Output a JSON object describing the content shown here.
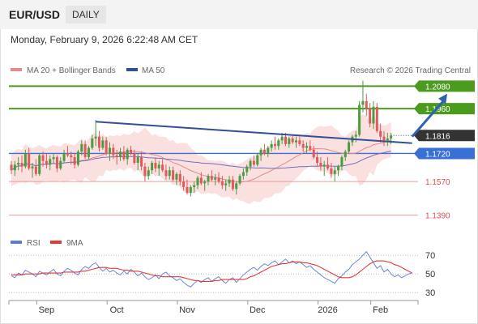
{
  "header": {
    "symbol": "EUR/USD",
    "period": "DAILY",
    "timestamp": "Monday, February 9, 2026 6:22:48 AM CET"
  },
  "legend": {
    "bb_label": "MA 20 + Bollinger Bands",
    "ma50_label": "MA 50",
    "credit": "Research © 2026 Trading Central",
    "rsi_label": "RSI",
    "rsi_ma_label": "9MA"
  },
  "colors": {
    "bullish": "#4b9b3f",
    "bearish": "#e0595c",
    "bollinger_fill": "#fbe0e0",
    "ma20": "#e58a8a",
    "ma50": "#6f6fc2",
    "resistance": "#4b9b1f",
    "support_blue": "#3a6fd6",
    "support_red": "#ef9a9a",
    "trendline": "#304f96",
    "arrow": "#2e63b3",
    "rsi": "#5b7bd6",
    "rsi_ma": "#e53935",
    "last_price_badge": "#333333"
  },
  "chart_data": [
    {
      "type": "candlestick",
      "title": "EUR/USD",
      "ylim": [
        1.1345,
        1.2125
      ],
      "x_ticks": [
        "Sep",
        "Oct",
        "Nov",
        "Dec",
        "2026",
        "Feb"
      ],
      "x_tick_positions": [
        10,
        30,
        50,
        70,
        90,
        105
      ],
      "candles_count": 115,
      "price_levels": [
        {
          "value": 1.208,
          "label": "1.2080",
          "kind": "resistance"
        },
        {
          "value": 1.196,
          "label": "1.1960",
          "kind": "resistance"
        },
        {
          "value": 1.1816,
          "label": "1.1816",
          "kind": "last"
        },
        {
          "value": 1.172,
          "label": "1.1720",
          "kind": "support"
        },
        {
          "value": 1.157,
          "label": "1.1570",
          "kind": "support"
        },
        {
          "value": 1.139,
          "label": "1.1390",
          "kind": "support"
        }
      ],
      "trendline": {
        "from": [
          24,
          1.189
        ],
        "to": [
          114,
          1.1775
        ]
      },
      "forecast_arrow": {
        "from": [
          114,
          1.181
        ],
        "to": [
          124,
          1.204
        ]
      },
      "bollinger_band_halfwidth": 0.0085,
      "ohlc": [
        [
          1.166,
          1.168,
          1.161,
          1.163
        ],
        [
          1.163,
          1.168,
          1.16,
          1.166
        ],
        [
          1.166,
          1.17,
          1.163,
          1.167
        ],
        [
          1.167,
          1.171,
          1.162,
          1.165
        ],
        [
          1.165,
          1.174,
          1.164,
          1.172
        ],
        [
          1.172,
          1.175,
          1.163,
          1.164
        ],
        [
          1.164,
          1.167,
          1.159,
          1.165
        ],
        [
          1.165,
          1.169,
          1.16,
          1.161
        ],
        [
          1.161,
          1.172,
          1.16,
          1.171
        ],
        [
          1.171,
          1.173,
          1.165,
          1.168
        ],
        [
          1.168,
          1.172,
          1.164,
          1.166
        ],
        [
          1.166,
          1.171,
          1.163,
          1.169
        ],
        [
          1.169,
          1.172,
          1.167,
          1.17
        ],
        [
          1.17,
          1.171,
          1.162,
          1.164
        ],
        [
          1.164,
          1.17,
          1.163,
          1.168
        ],
        [
          1.168,
          1.174,
          1.167,
          1.172
        ],
        [
          1.172,
          1.176,
          1.17,
          1.171
        ],
        [
          1.171,
          1.173,
          1.166,
          1.17
        ],
        [
          1.17,
          1.172,
          1.164,
          1.166
        ],
        [
          1.166,
          1.174,
          1.165,
          1.173
        ],
        [
          1.173,
          1.179,
          1.171,
          1.177
        ],
        [
          1.177,
          1.179,
          1.169,
          1.17
        ],
        [
          1.17,
          1.176,
          1.169,
          1.175
        ],
        [
          1.175,
          1.182,
          1.174,
          1.18
        ],
        [
          1.18,
          1.19,
          1.176,
          1.181
        ],
        [
          1.181,
          1.184,
          1.173,
          1.175
        ],
        [
          1.175,
          1.181,
          1.174,
          1.179
        ],
        [
          1.179,
          1.181,
          1.171,
          1.172
        ],
        [
          1.172,
          1.178,
          1.168,
          1.175
        ],
        [
          1.175,
          1.177,
          1.169,
          1.171
        ],
        [
          1.171,
          1.174,
          1.166,
          1.17
        ],
        [
          1.17,
          1.175,
          1.168,
          1.173
        ],
        [
          1.173,
          1.176,
          1.168,
          1.169
        ],
        [
          1.169,
          1.175,
          1.166,
          1.174
        ],
        [
          1.174,
          1.176,
          1.171,
          1.172
        ],
        [
          1.172,
          1.174,
          1.166,
          1.167
        ],
        [
          1.167,
          1.172,
          1.163,
          1.17
        ],
        [
          1.17,
          1.173,
          1.163,
          1.165
        ],
        [
          1.165,
          1.167,
          1.157,
          1.16
        ],
        [
          1.16,
          1.165,
          1.158,
          1.163
        ],
        [
          1.163,
          1.168,
          1.161,
          1.167
        ],
        [
          1.167,
          1.17,
          1.162,
          1.164
        ],
        [
          1.164,
          1.168,
          1.16,
          1.166
        ],
        [
          1.166,
          1.169,
          1.162,
          1.163
        ],
        [
          1.163,
          1.166,
          1.158,
          1.16
        ],
        [
          1.16,
          1.165,
          1.158,
          1.163
        ],
        [
          1.163,
          1.165,
          1.157,
          1.158
        ],
        [
          1.158,
          1.162,
          1.155,
          1.161
        ],
        [
          1.161,
          1.163,
          1.155,
          1.157
        ],
        [
          1.157,
          1.16,
          1.152,
          1.154
        ],
        [
          1.154,
          1.158,
          1.15,
          1.151
        ],
        [
          1.151,
          1.155,
          1.149,
          1.154
        ],
        [
          1.154,
          1.157,
          1.151,
          1.155
        ],
        [
          1.155,
          1.16,
          1.153,
          1.159
        ],
        [
          1.159,
          1.162,
          1.155,
          1.156
        ],
        [
          1.156,
          1.158,
          1.152,
          1.157
        ],
        [
          1.157,
          1.161,
          1.155,
          1.16
        ],
        [
          1.16,
          1.163,
          1.157,
          1.158
        ],
        [
          1.158,
          1.161,
          1.155,
          1.159
        ],
        [
          1.159,
          1.162,
          1.156,
          1.157
        ],
        [
          1.157,
          1.16,
          1.153,
          1.155
        ],
        [
          1.155,
          1.158,
          1.152,
          1.156
        ],
        [
          1.156,
          1.16,
          1.154,
          1.158
        ],
        [
          1.158,
          1.16,
          1.152,
          1.153
        ],
        [
          1.153,
          1.157,
          1.15,
          1.156
        ],
        [
          1.156,
          1.161,
          1.155,
          1.16
        ],
        [
          1.16,
          1.164,
          1.158,
          1.162
        ],
        [
          1.162,
          1.166,
          1.16,
          1.165
        ],
        [
          1.165,
          1.169,
          1.163,
          1.168
        ],
        [
          1.168,
          1.171,
          1.165,
          1.166
        ],
        [
          1.166,
          1.172,
          1.165,
          1.171
        ],
        [
          1.171,
          1.175,
          1.168,
          1.174
        ],
        [
          1.174,
          1.177,
          1.171,
          1.172
        ],
        [
          1.172,
          1.176,
          1.17,
          1.175
        ],
        [
          1.175,
          1.179,
          1.173,
          1.177
        ],
        [
          1.177,
          1.181,
          1.174,
          1.176
        ],
        [
          1.176,
          1.18,
          1.174,
          1.179
        ],
        [
          1.179,
          1.183,
          1.177,
          1.181
        ],
        [
          1.181,
          1.183,
          1.176,
          1.177
        ],
        [
          1.177,
          1.181,
          1.175,
          1.18
        ],
        [
          1.18,
          1.182,
          1.177,
          1.178
        ],
        [
          1.178,
          1.181,
          1.175,
          1.179
        ],
        [
          1.179,
          1.181,
          1.176,
          1.177
        ],
        [
          1.177,
          1.179,
          1.173,
          1.175
        ],
        [
          1.175,
          1.178,
          1.172,
          1.176
        ],
        [
          1.176,
          1.179,
          1.173,
          1.174
        ],
        [
          1.174,
          1.176,
          1.169,
          1.17
        ],
        [
          1.17,
          1.173,
          1.165,
          1.167
        ],
        [
          1.167,
          1.17,
          1.163,
          1.165
        ],
        [
          1.165,
          1.168,
          1.16,
          1.166
        ],
        [
          1.166,
          1.17,
          1.163,
          1.164
        ],
        [
          1.164,
          1.167,
          1.159,
          1.161
        ],
        [
          1.161,
          1.165,
          1.157,
          1.163
        ],
        [
          1.163,
          1.166,
          1.16,
          1.165
        ],
        [
          1.165,
          1.171,
          1.163,
          1.17
        ],
        [
          1.17,
          1.174,
          1.168,
          1.173
        ],
        [
          1.173,
          1.179,
          1.172,
          1.178
        ],
        [
          1.178,
          1.182,
          1.176,
          1.181
        ],
        [
          1.181,
          1.184,
          1.178,
          1.182
        ],
        [
          1.182,
          1.2,
          1.181,
          1.198
        ],
        [
          1.198,
          1.211,
          1.194,
          1.2
        ],
        [
          1.2,
          1.204,
          1.192,
          1.196
        ],
        [
          1.196,
          1.199,
          1.186,
          1.188
        ],
        [
          1.188,
          1.2,
          1.185,
          1.197
        ],
        [
          1.197,
          1.199,
          1.183,
          1.184
        ],
        [
          1.184,
          1.188,
          1.178,
          1.181
        ],
        [
          1.181,
          1.184,
          1.176,
          1.179
        ],
        [
          1.179,
          1.183,
          1.176,
          1.18
        ],
        [
          1.18,
          1.183,
          1.177,
          1.1816
        ]
      ]
    },
    {
      "type": "line",
      "title": "RSI",
      "ylim": [
        25,
        78
      ],
      "y_ticks": [
        70,
        50,
        30
      ],
      "series": [
        {
          "name": "RSI",
          "values": [
            48,
            46,
            51,
            49,
            54,
            52,
            50,
            47,
            53,
            51,
            49,
            52,
            55,
            50,
            48,
            53,
            56,
            54,
            51,
            49,
            55,
            58,
            56,
            60,
            62,
            57,
            53,
            56,
            52,
            54,
            51,
            49,
            53,
            50,
            55,
            52,
            48,
            51,
            47,
            44,
            46,
            49,
            45,
            50,
            52,
            48,
            46,
            43,
            45,
            41,
            38,
            36,
            40,
            43,
            41,
            44,
            46,
            42,
            45,
            47,
            43,
            40,
            44,
            46,
            41,
            45,
            49,
            52,
            55,
            57,
            54,
            58,
            61,
            59,
            62,
            64,
            60,
            63,
            66,
            62,
            64,
            61,
            63,
            60,
            57,
            59,
            55,
            52,
            49,
            46,
            44,
            42,
            40,
            45,
            48,
            52,
            55,
            60,
            63,
            66,
            70,
            74,
            68,
            62,
            56,
            59,
            52,
            55,
            50,
            47,
            49,
            46,
            48,
            50,
            51
          ]
        },
        {
          "name": "9MA",
          "values": [
            49,
            49,
            49,
            49,
            50,
            50,
            50,
            50,
            50,
            51,
            51,
            51,
            51,
            51,
            51,
            52,
            52,
            52,
            52,
            52,
            53,
            53,
            54,
            55,
            56,
            57,
            57,
            57,
            56,
            56,
            56,
            55,
            54,
            54,
            53,
            53,
            53,
            52,
            51,
            50,
            49,
            48,
            48,
            47,
            47,
            47,
            47,
            47,
            47,
            46,
            45,
            44,
            43,
            43,
            42,
            42,
            42,
            42,
            43,
            43,
            44,
            44,
            44,
            44,
            44,
            44,
            44,
            45,
            47,
            48,
            50,
            52,
            54,
            56,
            58,
            59,
            60,
            61,
            61,
            62,
            63,
            63,
            63,
            62,
            62,
            61,
            60,
            59,
            57,
            55,
            53,
            51,
            49,
            47,
            46,
            46,
            46,
            47,
            49,
            52,
            55,
            58,
            61,
            63,
            64,
            64,
            64,
            63,
            62,
            60,
            59,
            57,
            55,
            53,
            51
          ]
        }
      ]
    }
  ]
}
